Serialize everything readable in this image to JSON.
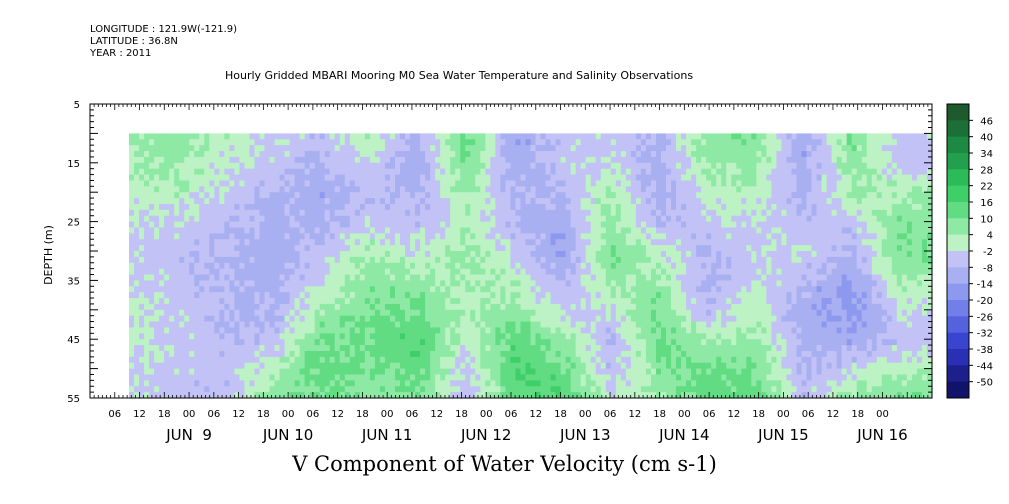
{
  "meta": {
    "longitude": "LONGITUDE : 121.9W(-121.9)",
    "latitude": "LATITUDE : 36.8N",
    "year": "YEAR : 2011"
  },
  "chart_data": {
    "type": "heatmap",
    "title": "Hourly Gridded MBARI Mooring M0 Sea Water Temperature and Salinity Observations",
    "xlabel": "V Component of Water Velocity (cm s-1)",
    "ylabel": "DEPTH (m)",
    "variable": "V Component of Water Velocity",
    "units": "cm s-1",
    "y_range": [
      5,
      55
    ],
    "y_inverted": true,
    "y_ticks": [
      5,
      15,
      25,
      35,
      45,
      55
    ],
    "data_depth_range": [
      10,
      55
    ],
    "x_range": [
      "2011-06-08T00:00",
      "2011-06-16T12:00"
    ],
    "data_time_range": [
      "2011-06-08T10:00",
      "2011-06-16T10:00"
    ],
    "x_hour_ticks": [
      "06",
      "12",
      "18",
      "00",
      "06",
      "12",
      "18",
      "00",
      "06",
      "12",
      "18",
      "00",
      "06",
      "12",
      "18",
      "00",
      "06",
      "12",
      "18",
      "00",
      "06",
      "12",
      "18",
      "00",
      "06",
      "12",
      "18",
      "00",
      "06",
      "12",
      "18",
      "00"
    ],
    "x_day_labels": [
      "JUN  9",
      "JUN 10",
      "JUN 11",
      "JUN 12",
      "JUN 13",
      "JUN 14",
      "JUN 15",
      "JUN 16"
    ],
    "colorbar": {
      "levels": [
        48,
        46,
        40,
        34,
        28,
        22,
        16,
        10,
        4,
        -2,
        -8,
        -14,
        -20,
        -26,
        -32,
        -38,
        -44,
        -50
      ],
      "labels": [
        "46",
        "40",
        "34",
        "28",
        "22",
        "16",
        "10",
        "4",
        "-2",
        "-8",
        "-14",
        "-20",
        "-26",
        "-32",
        "-38",
        "-44",
        "-50"
      ],
      "colors": [
        "#1f5a2e",
        "#1c6f37",
        "#1c8a42",
        "#22a04d",
        "#2bbb58",
        "#3fcf68",
        "#62dc83",
        "#8ee9a5",
        "#bdf2c4",
        "#c2c2f6",
        "#a9b0f2",
        "#8d99ee",
        "#727fe8",
        "#5462de",
        "#3a45cf",
        "#2a30b3",
        "#1d1f8c",
        "#111269"
      ]
    },
    "field_description": "Vertically banded alternating positive (green, 4 to 22) and negative (blue, -2 to -26) velocity from 10 m to 55 m depth",
    "columns": [
      {
        "t": 0.0,
        "v": [
          6,
          4,
          1,
          -2,
          -3,
          -2,
          -1,
          0,
          -1,
          -3
        ]
      },
      {
        "t": 0.06,
        "v": [
          8,
          6,
          3,
          -3,
          -6,
          -5,
          -4,
          -3,
          -4,
          -6
        ]
      },
      {
        "t": 0.12,
        "v": [
          2,
          -1,
          -4,
          -6,
          -8,
          -9,
          -8,
          -6,
          -5,
          -6
        ]
      },
      {
        "t": 0.18,
        "v": [
          -2,
          -4,
          -8,
          -10,
          -12,
          -11,
          -9,
          -6,
          2,
          6
        ]
      },
      {
        "t": 0.24,
        "v": [
          -6,
          -8,
          -12,
          -10,
          -6,
          -2,
          4,
          10,
          14,
          12
        ]
      },
      {
        "t": 0.3,
        "v": [
          2,
          -2,
          -6,
          -4,
          4,
          8,
          10,
          12,
          8,
          6
        ]
      },
      {
        "t": 0.36,
        "v": [
          -10,
          -12,
          -10,
          -6,
          -2,
          6,
          10,
          16,
          14,
          10
        ]
      },
      {
        "t": 0.42,
        "v": [
          12,
          10,
          6,
          2,
          6,
          4,
          2,
          0,
          -4,
          -6
        ]
      },
      {
        "t": 0.48,
        "v": [
          -14,
          -12,
          -10,
          -8,
          -4,
          2,
          8,
          14,
          16,
          12
        ]
      },
      {
        "t": 0.54,
        "v": [
          -6,
          -4,
          -8,
          -12,
          -14,
          -10,
          -4,
          6,
          12,
          16
        ]
      },
      {
        "t": 0.6,
        "v": [
          -4,
          -2,
          4,
          8,
          10,
          6,
          -2,
          -8,
          -6,
          -2
        ]
      },
      {
        "t": 0.66,
        "v": [
          -8,
          -10,
          -12,
          -8,
          0,
          6,
          10,
          12,
          8,
          4
        ]
      },
      {
        "t": 0.72,
        "v": [
          8,
          6,
          2,
          -4,
          -8,
          -10,
          -8,
          4,
          12,
          14
        ]
      },
      {
        "t": 0.78,
        "v": [
          10,
          6,
          2,
          -2,
          -4,
          -2,
          2,
          6,
          10,
          12
        ]
      },
      {
        "t": 0.84,
        "v": [
          -14,
          -12,
          -10,
          -6,
          -2,
          -8,
          -12,
          -10,
          -8,
          -6
        ]
      },
      {
        "t": 0.9,
        "v": [
          10,
          6,
          4,
          -4,
          -10,
          -14,
          -18,
          -12,
          -4,
          6
        ]
      },
      {
        "t": 0.96,
        "v": [
          -4,
          -6,
          4,
          8,
          10,
          4,
          -2,
          -6,
          2,
          10
        ]
      }
    ]
  }
}
